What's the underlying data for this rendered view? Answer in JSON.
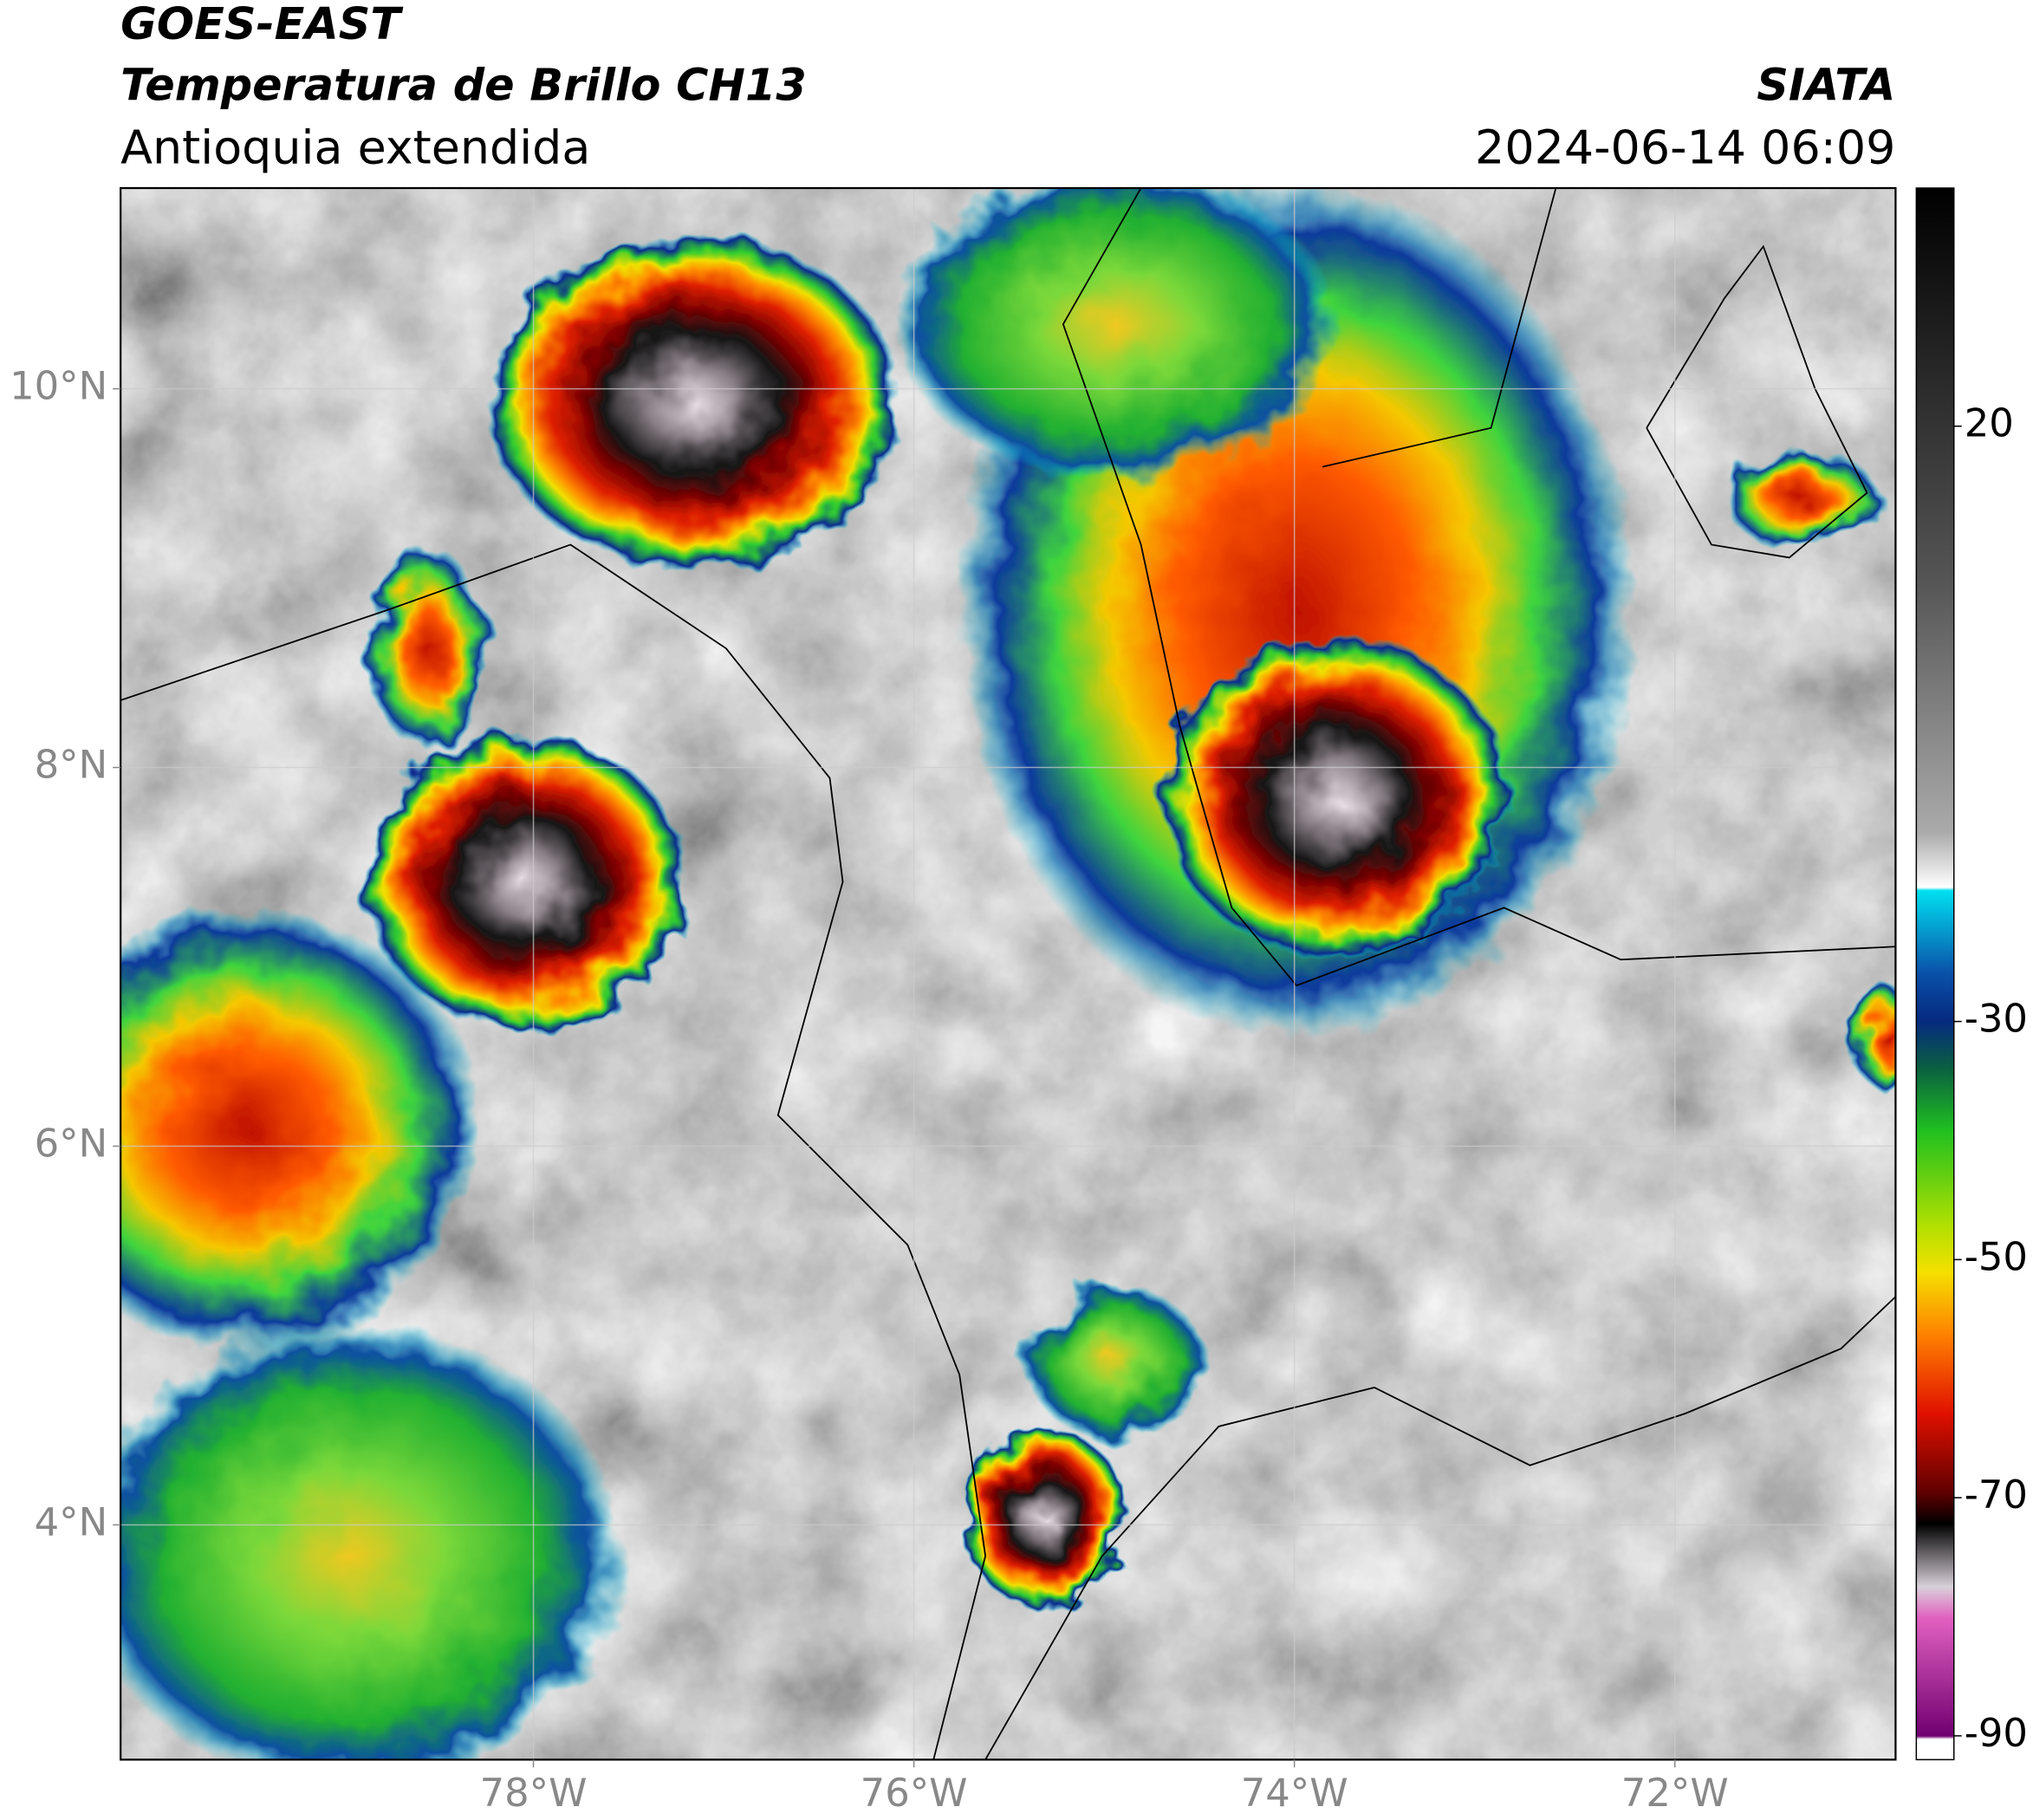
{
  "header": {
    "title_line1": "GOES-EAST",
    "title_line2": "Temperatura de Brillo CH13",
    "subtitle": "Antioquia extendida",
    "source": "SIATA",
    "datetime": "2024-06-14 06:09"
  },
  "map": {
    "lat_range": [
      2.76,
      11.06
    ],
    "lon_range": [
      -80.17,
      -70.84
    ],
    "grid": true,
    "lat_ticks": [
      {
        "value": 10,
        "label": "10°N"
      },
      {
        "value": 8,
        "label": "8°N"
      },
      {
        "value": 6,
        "label": "6°N"
      },
      {
        "value": 4,
        "label": "4°N"
      }
    ],
    "lon_ticks": [
      {
        "value": -78,
        "label": "78°W"
      },
      {
        "value": -76,
        "label": "76°W"
      },
      {
        "value": -74,
        "label": "74°W"
      },
      {
        "value": -72,
        "label": "72°W"
      }
    ]
  },
  "colorbar": {
    "range": [
      -92,
      40
    ],
    "ticks": [
      20,
      -30,
      -50,
      -70,
      -90
    ]
  }
}
